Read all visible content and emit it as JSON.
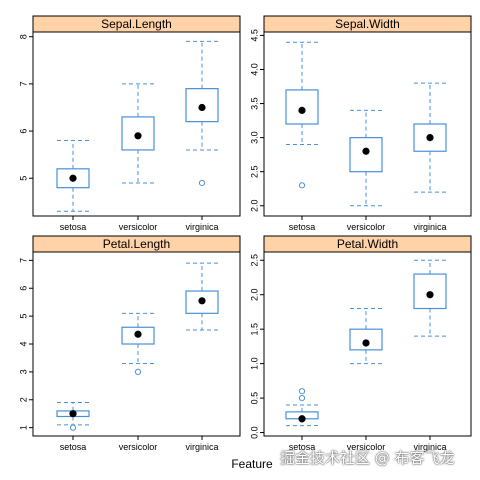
{
  "colors": {
    "strip": "#ffd2a8",
    "box": "#4a90d9",
    "median": "#000000",
    "frame": "#000000"
  },
  "xlabel": "Feature",
  "watermark": "掘金技术社区 @ 布客飞龙",
  "chart_data": [
    {
      "type": "box",
      "title": "Sepal.Length",
      "categories": [
        "setosa",
        "versicolor",
        "virginica"
      ],
      "ylim": [
        4.2,
        8.1
      ],
      "yticks": [
        5,
        6,
        7,
        8
      ],
      "boxes": [
        {
          "whisker_low": 4.3,
          "q1": 4.8,
          "median": 5.0,
          "q3": 5.2,
          "whisker_high": 5.8,
          "outliers": []
        },
        {
          "whisker_low": 4.9,
          "q1": 5.6,
          "median": 5.9,
          "q3": 6.3,
          "whisker_high": 7.0,
          "outliers": []
        },
        {
          "whisker_low": 5.6,
          "q1": 6.2,
          "median": 6.5,
          "q3": 6.9,
          "whisker_high": 7.9,
          "outliers": [
            4.9
          ]
        }
      ]
    },
    {
      "type": "box",
      "title": "Sepal.Width",
      "categories": [
        "setosa",
        "versicolor",
        "virginica"
      ],
      "ylim": [
        1.85,
        4.55
      ],
      "yticks": [
        2.0,
        2.5,
        3.0,
        3.5,
        4.0,
        4.5
      ],
      "boxes": [
        {
          "whisker_low": 2.9,
          "q1": 3.2,
          "median": 3.4,
          "q3": 3.7,
          "whisker_high": 4.4,
          "outliers": [
            2.3
          ]
        },
        {
          "whisker_low": 2.0,
          "q1": 2.5,
          "median": 2.8,
          "q3": 3.0,
          "whisker_high": 3.4,
          "outliers": []
        },
        {
          "whisker_low": 2.2,
          "q1": 2.8,
          "median": 3.0,
          "q3": 3.2,
          "whisker_high": 3.8,
          "outliers": []
        }
      ]
    },
    {
      "type": "box",
      "title": "Petal.Length",
      "categories": [
        "setosa",
        "versicolor",
        "virginica"
      ],
      "ylim": [
        0.7,
        7.3
      ],
      "yticks": [
        1,
        2,
        3,
        4,
        5,
        6,
        7
      ],
      "boxes": [
        {
          "whisker_low": 1.1,
          "q1": 1.4,
          "median": 1.5,
          "q3": 1.6,
          "whisker_high": 1.9,
          "outliers": [
            1.0
          ]
        },
        {
          "whisker_low": 3.3,
          "q1": 4.0,
          "median": 4.35,
          "q3": 4.6,
          "whisker_high": 5.1,
          "outliers": [
            3.0
          ]
        },
        {
          "whisker_low": 4.5,
          "q1": 5.1,
          "median": 5.55,
          "q3": 5.9,
          "whisker_high": 6.9,
          "outliers": []
        }
      ]
    },
    {
      "type": "box",
      "title": "Petal.Width",
      "categories": [
        "setosa",
        "versicolor",
        "virginica"
      ],
      "ylim": [
        -0.05,
        2.62
      ],
      "yticks": [
        0.0,
        0.5,
        1.0,
        1.5,
        2.0,
        2.5
      ],
      "boxes": [
        {
          "whisker_low": 0.1,
          "q1": 0.2,
          "median": 0.2,
          "q3": 0.3,
          "whisker_high": 0.4,
          "outliers": [
            0.5,
            0.6
          ]
        },
        {
          "whisker_low": 1.0,
          "q1": 1.2,
          "median": 1.3,
          "q3": 1.5,
          "whisker_high": 1.8,
          "outliers": []
        },
        {
          "whisker_low": 1.4,
          "q1": 1.8,
          "median": 2.0,
          "q3": 2.3,
          "whisker_high": 2.5,
          "outliers": []
        }
      ]
    }
  ]
}
